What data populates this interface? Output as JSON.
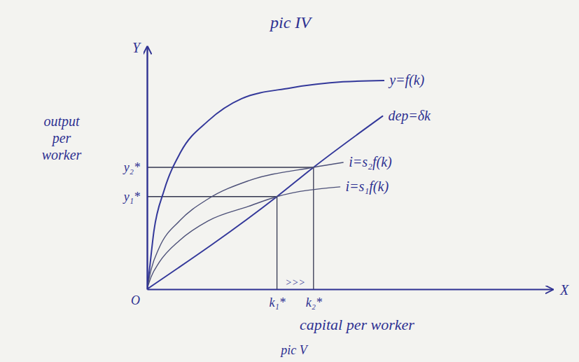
{
  "chart_data": {
    "type": "line",
    "title": "pic IV",
    "caption": "pic V",
    "x_label": "capital per worker",
    "y_label": "output per worker",
    "x_axis_letter": "X",
    "y_axis_letter": "Y",
    "origin_label": "O",
    "annotation": ">>>",
    "xlim": [
      0,
      100
    ],
    "ylim": [
      0,
      100
    ],
    "xticks": [
      {
        "value": 32,
        "label": "k₁*"
      },
      {
        "value": 41,
        "label": "k₂*"
      }
    ],
    "yticks": [
      {
        "value": 38,
        "label": "y₁*"
      },
      {
        "value": 50,
        "label": "y₂*"
      }
    ],
    "grid": false,
    "series": [
      {
        "name": "y=f(k)",
        "color": "#33389a",
        "x": [
          0,
          0.5,
          1.7,
          4.2,
          8.3,
          15,
          23.3,
          35,
          48.3,
          58.3
        ],
        "values": [
          0,
          6.6,
          23.9,
          40.5,
          56.3,
          69,
          78.2,
          82.5,
          85.1,
          85.6
        ]
      },
      {
        "name": "dep=δk",
        "color": "#33389a",
        "x": [
          0,
          32,
          41,
          58
        ],
        "values": [
          0,
          38,
          50,
          71
        ]
      },
      {
        "name": "i=s₂f(k)",
        "color": "#4c5078",
        "x": [
          0,
          1,
          3,
          8,
          15,
          25,
          41,
          48.3
        ],
        "values": [
          0,
          8,
          17,
          28,
          37,
          44.5,
          50,
          52
        ]
      },
      {
        "name": "i=s₁f(k)",
        "color": "#4c5078",
        "x": [
          0,
          1,
          3,
          8,
          15,
          25,
          32,
          47.5
        ],
        "values": [
          0,
          5,
          11,
          20,
          28,
          34,
          38,
          42
        ]
      }
    ]
  }
}
